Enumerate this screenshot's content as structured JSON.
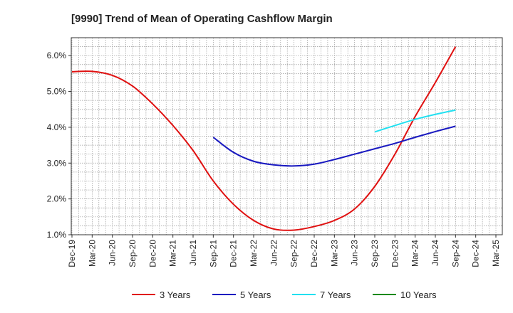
{
  "chart_data": {
    "type": "line",
    "title": "[9990]  Trend of Mean of Operating Cashflow Margin",
    "xlabel": "",
    "ylabel": "",
    "ylim": [
      1.0,
      6.5
    ],
    "y_ticks": [
      1.0,
      2.0,
      3.0,
      4.0,
      5.0,
      6.0
    ],
    "y_tick_labels": [
      "1.0%",
      "2.0%",
      "3.0%",
      "4.0%",
      "5.0%",
      "6.0%"
    ],
    "grid": true,
    "legend_position": "bottom",
    "categories": [
      "Dec-19",
      "Mar-20",
      "Jun-20",
      "Sep-20",
      "Dec-20",
      "Mar-21",
      "Jun-21",
      "Sep-21",
      "Dec-21",
      "Mar-22",
      "Jun-22",
      "Sep-22",
      "Dec-22",
      "Mar-23",
      "Jun-23",
      "Sep-23",
      "Dec-23",
      "Mar-24",
      "Jun-24",
      "Sep-24",
      "Dec-24",
      "Mar-25"
    ],
    "series": [
      {
        "name": "3 Years",
        "color": "#e01010",
        "values": [
          5.55,
          5.56,
          5.45,
          5.15,
          4.65,
          4.05,
          3.35,
          2.5,
          1.85,
          1.4,
          1.16,
          1.13,
          1.23,
          1.4,
          1.72,
          2.35,
          3.25,
          4.3,
          5.25,
          6.25,
          null,
          null
        ]
      },
      {
        "name": "5 Years",
        "color": "#1818c0",
        "values": [
          null,
          null,
          null,
          null,
          null,
          null,
          null,
          3.72,
          3.3,
          3.05,
          2.95,
          2.92,
          2.97,
          3.1,
          3.25,
          3.4,
          3.55,
          3.72,
          3.88,
          4.03,
          null,
          null
        ]
      },
      {
        "name": "7 Years",
        "color": "#22e0f0",
        "values": [
          null,
          null,
          null,
          null,
          null,
          null,
          null,
          null,
          null,
          null,
          null,
          null,
          null,
          null,
          null,
          3.87,
          4.05,
          4.22,
          4.36,
          4.48,
          null,
          null
        ]
      },
      {
        "name": "10 Years",
        "color": "#1a8a1a",
        "values": [
          null,
          null,
          null,
          null,
          null,
          null,
          null,
          null,
          null,
          null,
          null,
          null,
          null,
          null,
          null,
          null,
          null,
          null,
          null,
          null,
          null,
          null
        ]
      }
    ]
  }
}
